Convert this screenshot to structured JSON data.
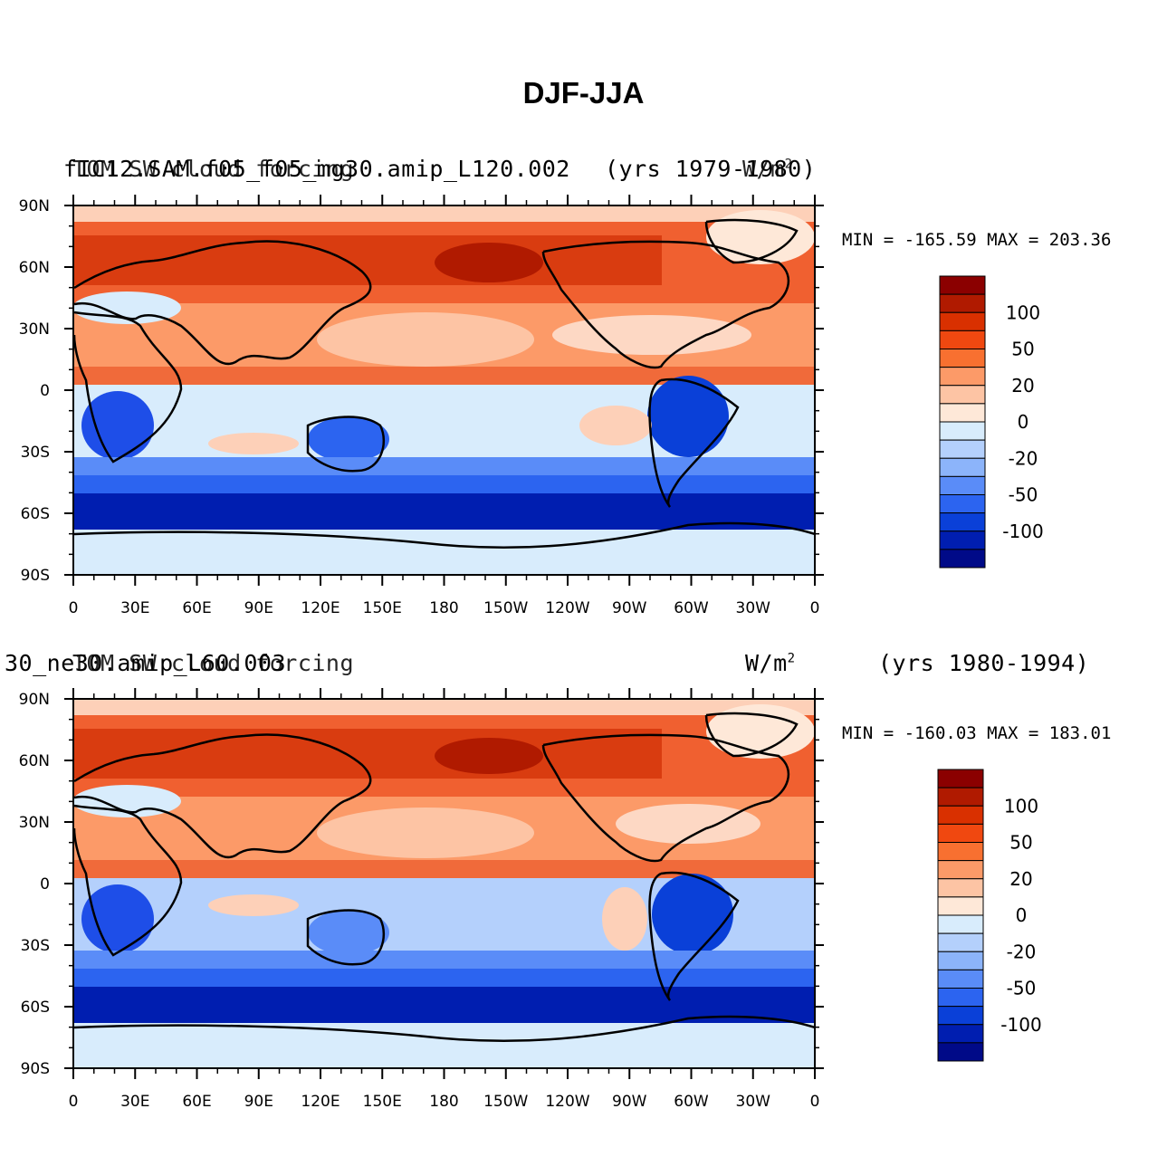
{
  "title": "DJF-JJA",
  "panels": [
    {
      "case_name": "fIC12.SAM.f05_f05_mg30.amip_L120.002",
      "variable": "TOM SW cloud forcing",
      "years": "(yrs 1979-1980)",
      "units": "W/m",
      "units_sup": "2",
      "min": "-165.59",
      "max": "203.36",
      "minmax_text": "MIN = -165.59 MAX = 203.36"
    },
    {
      "case_name": "30_ne30.amip_L60.003",
      "variable": "TOM SW cloud forcing",
      "years": "(yrs 1980-1994)",
      "units": "W/m",
      "units_sup": "2",
      "min": "-160.03",
      "max": "183.01",
      "minmax_text": "MIN = -160.03 MAX = 183.01"
    }
  ],
  "axes": {
    "lat_labels": [
      "90N",
      "60N",
      "30N",
      "0",
      "30S",
      "60S",
      "90S"
    ],
    "lon_labels": [
      "0",
      "30E",
      "60E",
      "90E",
      "120E",
      "150E",
      "180",
      "150W",
      "120W",
      "90W",
      "60W",
      "30W",
      "0"
    ]
  },
  "colorbar": {
    "colors": [
      "#8b0000",
      "#b01a00",
      "#d93000",
      "#f04810",
      "#f87030",
      "#fc9a68",
      "#fdc4a4",
      "#fee8d8",
      "#d8ecfc",
      "#b4d0fc",
      "#8cb4fa",
      "#5a8cf8",
      "#2c64f0",
      "#0a40d8",
      "#001eb0",
      "#000a88"
    ],
    "labels": [
      "100",
      "50",
      "20",
      "0",
      "-20",
      "-50",
      "-100"
    ]
  }
}
